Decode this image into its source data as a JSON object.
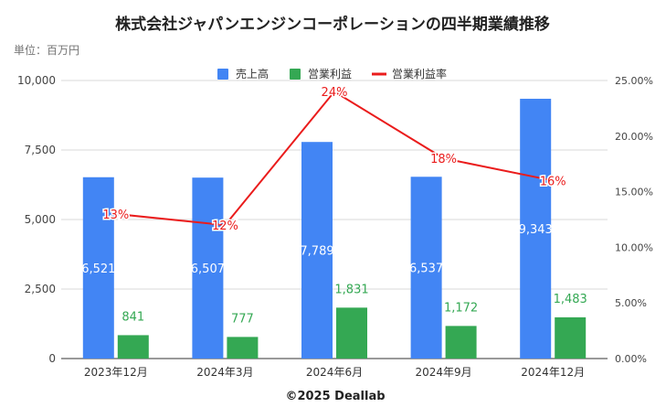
{
  "chart_data": {
    "type": "bar",
    "title": "株式会社ジャパンエンジンコーポレーションの四半期業績推移",
    "unit_label": "単位：百万円",
    "footer": "©2025 Deallab",
    "categories": [
      "2023年12月",
      "2024年3月",
      "2024年6月",
      "2024年9月",
      "2024年12月"
    ],
    "series": [
      {
        "name": "売上高",
        "type": "bar",
        "axis": "left",
        "color": "#4285f4",
        "values": [
          6521,
          6507,
          7789,
          6537,
          9343
        ],
        "labels": [
          "6,521",
          "6,507",
          "7,789",
          "6,537",
          "9,343"
        ]
      },
      {
        "name": "営業利益",
        "type": "bar",
        "axis": "left",
        "color": "#34a853",
        "values": [
          841,
          777,
          1831,
          1172,
          1483
        ],
        "labels": [
          "841",
          "777",
          "1,831",
          "1,172",
          "1,483"
        ]
      },
      {
        "name": "営業利益率",
        "type": "line",
        "axis": "right",
        "color": "#ea1c1c",
        "values": [
          0.13,
          0.12,
          0.24,
          0.18,
          0.16
        ],
        "labels": [
          "13%",
          "12%",
          "24%",
          "18%",
          "16%"
        ]
      }
    ],
    "y_left": {
      "range": [
        0,
        10000
      ],
      "ticks": [
        "0",
        "2,500",
        "5,000",
        "7,500",
        "10,000"
      ],
      "tick_values": [
        0,
        2500,
        5000,
        7500,
        10000
      ]
    },
    "y_right": {
      "range": [
        0,
        0.25
      ],
      "ticks": [
        "0.00%",
        "5.00%",
        "10.00%",
        "15.00%",
        "20.00%",
        "25.00%"
      ],
      "tick_values": [
        0,
        0.05,
        0.1,
        0.15,
        0.2,
        0.25
      ]
    },
    "legend_position": "top",
    "grid": true
  }
}
